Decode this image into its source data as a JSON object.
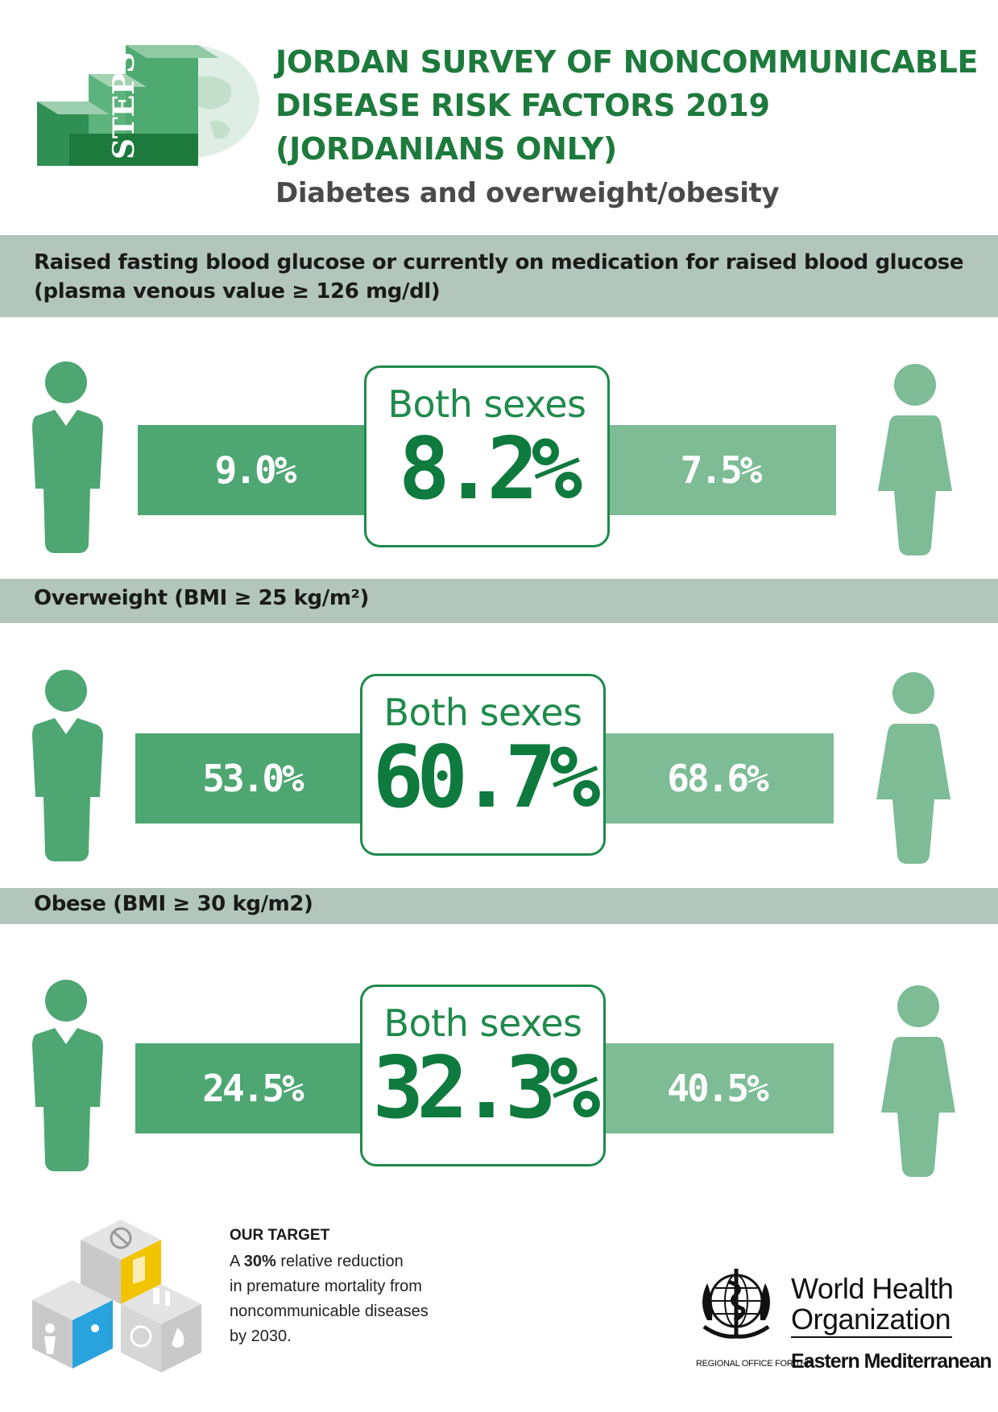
{
  "header": {
    "logo_text": "STEPS",
    "title": "JORDAN SURVEY OF NONCOMMUNICABLE\nDISEASE RISK FACTORS 2019\n(JORDANIANS ONLY)",
    "subtitle": "Diabetes and overweight/obesity"
  },
  "sections": [
    {
      "heading": "Raised fasting blood glucose or currently on medication for raised blood glucose\n(plasma venous value ≥ 126 mg/dl)",
      "men": "9.0%",
      "both_label": "Both sexes",
      "both": "8.2%",
      "women": "7.5%"
    },
    {
      "heading": "Overweight (BMI ≥ 25 kg/m²)",
      "men": "53.0%",
      "both_label": "Both sexes",
      "both": "60.7%",
      "women": "68.6%"
    },
    {
      "heading": "Obese (BMI ≥ 30 kg/m2)",
      "men": "24.5%",
      "both_label": "Both sexes",
      "both": "32.3%",
      "women": "40.5%"
    }
  ],
  "target": {
    "heading": "OUR TARGET",
    "line1_prefix": "A ",
    "line1_bold": "30%",
    "line1_suffix": " relative reduction",
    "line2": "in premature mortality from",
    "line3": "noncommunicable diseases",
    "line4": "by 2030."
  },
  "who": {
    "name": "World Health\nOrganization",
    "region_prefix": "REGIONAL OFFICE FOR THE",
    "region": "Eastern Mediterranean"
  },
  "colors": {
    "title_green": "#1d7a3c",
    "band_grey_green": "#b2c6bb",
    "men_bar": "#4ea673",
    "women_bar": "#7dbc95",
    "both_value": "#0e7a3e"
  }
}
